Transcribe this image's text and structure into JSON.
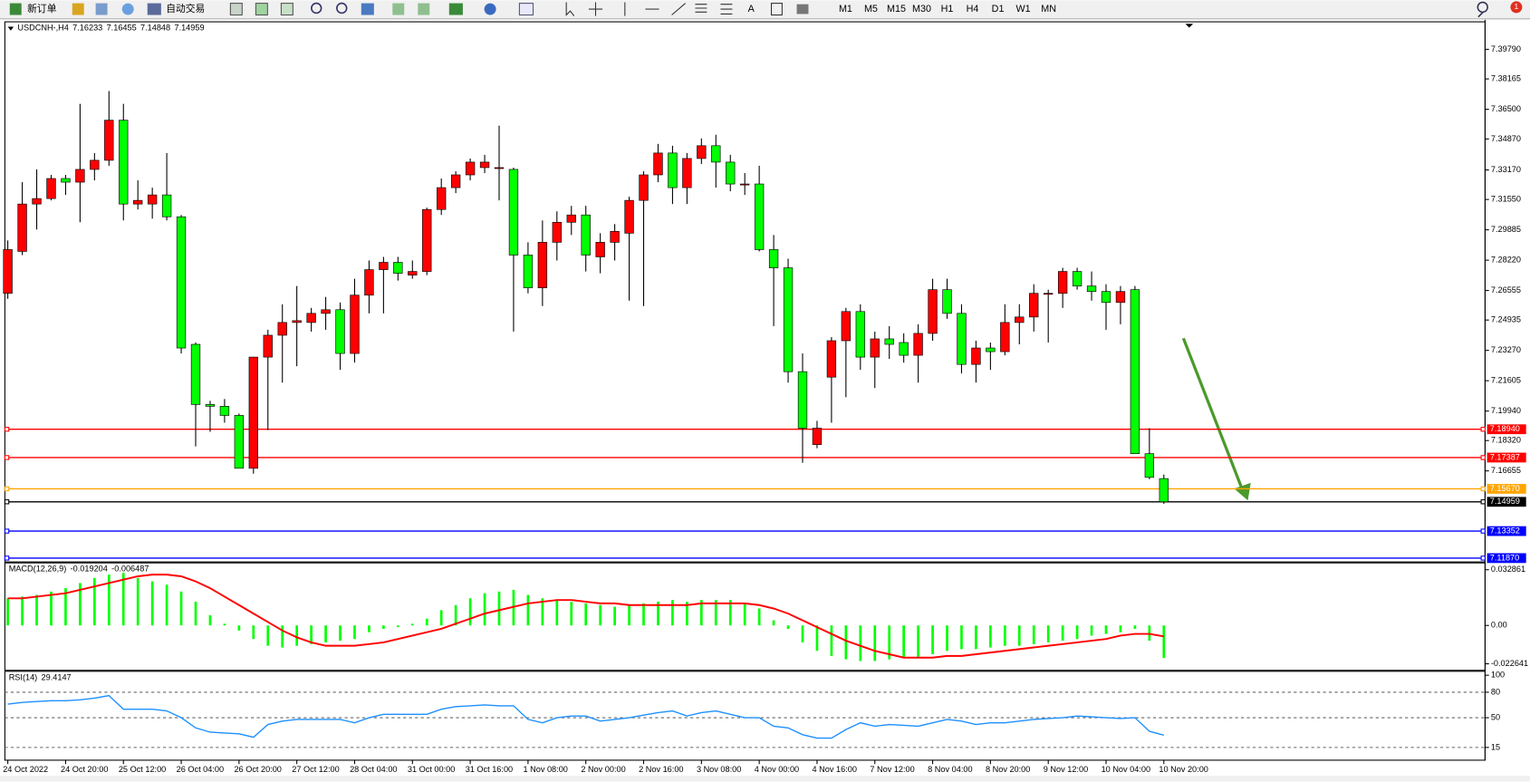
{
  "toolbar": {
    "new_order": "新订单",
    "auto_trading": "自动交易",
    "text_tool": "A",
    "timeframes": [
      "M1",
      "M5",
      "M15",
      "M30",
      "H1",
      "H4",
      "D1",
      "W1",
      "MN"
    ],
    "notifications": 1
  },
  "chart_data": [
    {
      "type": "candlestick",
      "title": "USDCNH-,H4",
      "header_values": [
        7.16233,
        7.16455,
        7.14848,
        7.14959
      ],
      "categories": [
        "24 Oct 2022",
        null,
        null,
        null,
        "24 Oct 20:00",
        null,
        null,
        null,
        "25 Oct 12:00",
        null,
        null,
        null,
        "26 Oct 04:00",
        null,
        null,
        null,
        "26 Oct 20:00",
        null,
        null,
        null,
        "27 Oct 12:00",
        null,
        null,
        null,
        "28 Oct 04:00",
        null,
        null,
        null,
        "31 Oct 00:00",
        null,
        null,
        null,
        "31 Oct 16:00",
        null,
        null,
        null,
        "1 Nov 08:00",
        null,
        null,
        null,
        "2 Nov 00:00",
        null,
        null,
        null,
        "2 Nov 16:00",
        null,
        null,
        null,
        "3 Nov 08:00",
        null,
        null,
        null,
        "4 Nov 00:00",
        null,
        null,
        null,
        "4 Nov 16:00",
        null,
        null,
        null,
        "7 Nov 12:00",
        null,
        null,
        null,
        "8 Nov 04:00",
        null,
        null,
        null,
        "8 Nov 20:00",
        null,
        null,
        null,
        "9 Nov 12:00",
        null,
        null,
        null,
        "10 Nov 04:00",
        null,
        null,
        null,
        "10 Nov 20:00"
      ],
      "up_color": "#ff0000",
      "down_color": "#00ff00",
      "open": [
        7.264,
        7.287,
        7.313,
        7.316,
        7.327,
        7.325,
        7.332,
        7.337,
        7.359,
        7.313,
        7.313,
        7.318,
        7.306,
        7.236,
        7.203,
        7.202,
        7.197,
        7.168,
        7.229,
        7.241,
        7.248,
        7.248,
        7.253,
        7.255,
        7.231,
        7.263,
        7.277,
        7.281,
        7.274,
        7.276,
        7.31,
        7.322,
        7.329,
        7.333,
        7.333,
        7.332,
        7.285,
        7.267,
        7.292,
        7.303,
        7.307,
        7.284,
        7.292,
        7.297,
        7.315,
        7.329,
        7.341,
        7.322,
        7.338,
        7.345,
        7.336,
        7.324,
        7.324,
        7.288,
        7.278,
        7.221,
        7.181,
        7.218,
        7.238,
        7.254,
        7.229,
        7.239,
        7.237,
        7.23,
        7.242,
        7.266,
        7.253,
        7.225,
        7.234,
        7.232,
        7.248,
        7.251,
        7.264,
        7.264,
        7.276,
        7.268,
        7.265,
        7.259,
        7.266,
        7.176,
        7.16233
      ],
      "high": [
        7.293,
        7.325,
        7.332,
        7.329,
        7.329,
        7.368,
        7.341,
        7.375,
        7.368,
        7.326,
        7.322,
        7.341,
        7.307,
        7.237,
        7.205,
        7.206,
        7.198,
        7.229,
        7.244,
        7.258,
        7.268,
        7.256,
        7.262,
        7.259,
        7.272,
        7.282,
        7.284,
        7.284,
        7.282,
        7.311,
        7.327,
        7.331,
        7.338,
        7.34,
        7.356,
        7.333,
        7.292,
        7.304,
        7.309,
        7.312,
        7.312,
        7.297,
        7.302,
        7.317,
        7.331,
        7.346,
        7.345,
        7.341,
        7.349,
        7.351,
        7.34,
        7.33,
        7.334,
        7.296,
        7.283,
        7.231,
        7.194,
        7.24,
        7.256,
        7.258,
        7.243,
        7.246,
        7.242,
        7.247,
        7.272,
        7.272,
        7.258,
        7.238,
        7.237,
        7.258,
        7.258,
        7.269,
        7.266,
        7.278,
        7.278,
        7.276,
        7.269,
        7.268,
        7.268,
        7.19,
        7.16455
      ],
      "low": [
        7.261,
        7.285,
        7.299,
        7.315,
        7.318,
        7.303,
        7.326,
        7.334,
        7.304,
        7.31,
        7.305,
        7.304,
        7.231,
        7.18,
        7.188,
        7.193,
        7.168,
        7.165,
        7.189,
        7.215,
        7.224,
        7.243,
        7.244,
        7.222,
        7.226,
        7.253,
        7.253,
        7.271,
        7.272,
        7.274,
        7.307,
        7.319,
        7.326,
        7.33,
        7.315,
        7.243,
        7.264,
        7.257,
        7.282,
        7.296,
        7.276,
        7.275,
        7.282,
        7.26,
        7.257,
        7.325,
        7.313,
        7.313,
        7.335,
        7.322,
        7.32,
        7.318,
        7.287,
        7.246,
        7.215,
        7.171,
        7.179,
        7.193,
        7.207,
        7.222,
        7.212,
        7.228,
        7.226,
        7.215,
        7.238,
        7.25,
        7.22,
        7.215,
        7.222,
        7.23,
        7.236,
        7.243,
        7.237,
        7.256,
        7.266,
        7.26,
        7.244,
        7.247,
        7.176,
        7.162,
        7.14848
      ],
      "close": [
        7.288,
        7.313,
        7.316,
        7.327,
        7.325,
        7.332,
        7.337,
        7.359,
        7.313,
        7.315,
        7.318,
        7.306,
        7.234,
        7.203,
        7.202,
        7.197,
        7.168,
        7.229,
        7.241,
        7.248,
        7.249,
        7.253,
        7.255,
        7.231,
        7.263,
        7.277,
        7.281,
        7.275,
        7.276,
        7.31,
        7.322,
        7.329,
        7.336,
        7.336,
        7.333,
        7.285,
        7.267,
        7.292,
        7.303,
        7.307,
        7.285,
        7.292,
        7.298,
        7.315,
        7.329,
        7.341,
        7.322,
        7.338,
        7.345,
        7.336,
        7.324,
        7.324,
        7.288,
        7.278,
        7.221,
        7.19,
        7.19,
        7.238,
        7.254,
        7.229,
        7.239,
        7.236,
        7.23,
        7.242,
        7.266,
        7.253,
        7.225,
        7.234,
        7.232,
        7.248,
        7.251,
        7.264,
        7.264,
        7.276,
        7.268,
        7.265,
        7.259,
        7.265,
        7.176,
        7.163,
        7.14959
      ],
      "ylim": [
        7.1166,
        7.413
      ],
      "yticks": [
        {
          "value": 7.3979,
          "label": "7.39790"
        },
        7.38165,
        {
          "value": 7.365,
          "label": "7.36500"
        },
        {
          "value": 7.3487,
          "label": "7.34870"
        },
        {
          "value": 7.3317,
          "label": "7.33170"
        },
        {
          "value": 7.3155,
          "label": "7.31550"
        },
        7.29885,
        {
          "value": 7.2822,
          "label": "7.28220"
        },
        7.26555,
        7.24935,
        {
          "value": 7.2327,
          "label": "7.23270"
        },
        7.21605,
        {
          "value": 7.1994,
          "label": "7.19940"
        },
        {
          "value": 7.1832,
          "label": "7.18320"
        },
        7.16655
      ],
      "levels": [
        {
          "value": 7.1894,
          "label": "7.18940",
          "color": "#ff0000"
        },
        {
          "value": 7.17387,
          "label": "7.17387",
          "color": "#ff0000"
        },
        {
          "value": 7.1567,
          "label": "7.15670",
          "color": "#ffa500"
        },
        {
          "value": 7.14959,
          "label": "7.14959",
          "color": "#000000"
        },
        {
          "value": 7.13352,
          "label": "7.13352",
          "color": "#0000ff"
        },
        {
          "value": 7.1187,
          "label": "7.11870",
          "color": "#0000ff"
        }
      ]
    },
    {
      "type": "macd",
      "title": "MACD(12,26,9)",
      "header_values": [
        -0.019204,
        -0.006487
      ],
      "series": [
        {
          "kind": "bar",
          "color": "#00ff00",
          "values": [
            0.016,
            0.017,
            0.018,
            0.02,
            0.022,
            0.025,
            0.028,
            0.03,
            0.031,
            0.028,
            0.026,
            0.024,
            0.02,
            0.014,
            0.006,
            0.001,
            -0.003,
            -0.008,
            -0.012,
            -0.013,
            -0.012,
            -0.011,
            -0.01,
            -0.009,
            -0.008,
            -0.004,
            -0.002,
            -0.001,
            0.001,
            0.004,
            0.009,
            0.012,
            0.016,
            0.019,
            0.02,
            0.021,
            0.018,
            0.016,
            0.015,
            0.014,
            0.013,
            0.012,
            0.011,
            0.012,
            0.013,
            0.014,
            0.015,
            0.014,
            0.015,
            0.015,
            0.015,
            0.013,
            0.01,
            0.003,
            -0.002,
            -0.01,
            -0.015,
            -0.018,
            -0.02,
            -0.021,
            -0.021,
            -0.02,
            -0.019,
            -0.019,
            -0.017,
            -0.015,
            -0.014,
            -0.014,
            -0.013,
            -0.012,
            -0.012,
            -0.011,
            -0.01,
            -0.009,
            -0.008,
            -0.006,
            -0.005,
            -0.004,
            -0.002,
            -0.009,
            -0.019204
          ]
        },
        {
          "kind": "line",
          "color": "#ff0000",
          "values": [
            0.016,
            0.016,
            0.017,
            0.018,
            0.019,
            0.021,
            0.023,
            0.025,
            0.027,
            0.029,
            0.03,
            0.03,
            0.029,
            0.026,
            0.022,
            0.017,
            0.012,
            0.007,
            0.002,
            -0.003,
            -0.007,
            -0.01,
            -0.012,
            -0.012,
            -0.012,
            -0.011,
            -0.01,
            -0.008,
            -0.006,
            -0.004,
            -0.002,
            0.001,
            0.004,
            0.007,
            0.009,
            0.011,
            0.013,
            0.014,
            0.015,
            0.015,
            0.014,
            0.013,
            0.013,
            0.012,
            0.012,
            0.012,
            0.012,
            0.012,
            0.013,
            0.013,
            0.013,
            0.013,
            0.012,
            0.01,
            0.007,
            0.003,
            -0.001,
            -0.005,
            -0.009,
            -0.012,
            -0.015,
            -0.017,
            -0.019,
            -0.019,
            -0.019,
            -0.018,
            -0.018,
            -0.017,
            -0.016,
            -0.015,
            -0.014,
            -0.013,
            -0.012,
            -0.011,
            -0.01,
            -0.009,
            -0.008,
            -0.006,
            -0.005,
            -0.005,
            -0.006487
          ]
        }
      ],
      "ylim": [
        -0.0265,
        0.0369
      ],
      "yticks": [
        0.032861,
        {
          "value": 0,
          "label": "0.00"
        },
        -0.022641
      ]
    },
    {
      "type": "line",
      "title": "RSI(14)",
      "header_values": [
        29.4147
      ],
      "series": [
        {
          "color": "#1e90ff",
          "values": [
            66,
            68,
            69,
            70,
            70,
            71,
            73,
            76,
            60,
            60,
            60,
            58,
            50,
            38,
            33,
            32,
            31,
            27,
            42,
            46,
            48,
            48,
            48,
            48,
            44,
            50,
            54,
            54,
            54,
            54,
            60,
            63,
            64,
            65,
            64,
            64,
            48,
            44,
            50,
            52,
            52,
            46,
            48,
            50,
            53,
            56,
            58,
            52,
            56,
            58,
            54,
            50,
            50,
            40,
            38,
            30,
            26,
            26,
            36,
            44,
            40,
            42,
            41,
            40,
            44,
            48,
            46,
            42,
            44,
            44,
            46,
            48,
            49,
            50,
            52,
            51,
            50,
            49,
            50,
            34,
            29.4147
          ]
        }
      ],
      "ylim": [
        0,
        104.6
      ],
      "yticks": [
        100,
        80,
        50,
        15
      ],
      "levels": [
        80,
        50,
        15
      ]
    }
  ]
}
